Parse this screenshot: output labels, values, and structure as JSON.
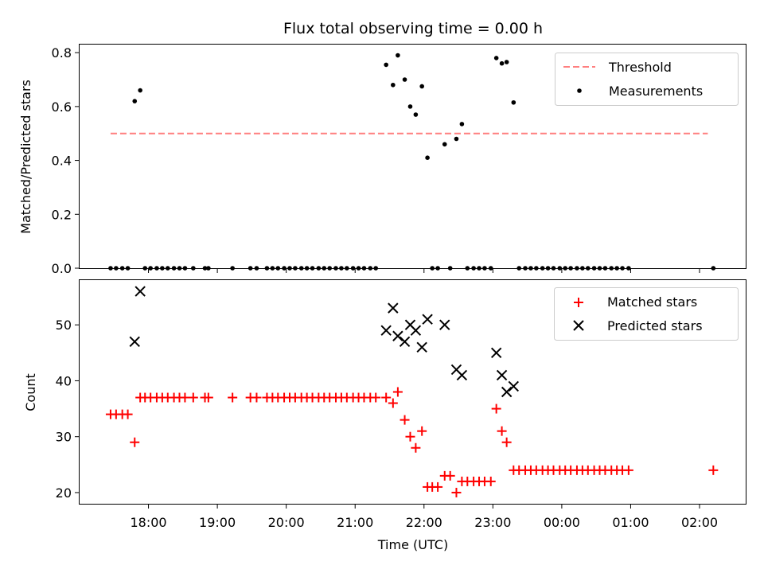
{
  "chart_data": [
    {
      "type": "scatter",
      "title": "Flux total observing time = 0.00 h",
      "ylabel": "Matched/Predicted stars",
      "ylim": [
        0,
        0.83
      ],
      "yticks": [
        "0.0",
        "0.2",
        "0.4",
        "0.6",
        "0.8"
      ],
      "ytick_values": [
        0,
        0.2,
        0.4,
        0.6,
        0.8
      ],
      "xlim": [
        17.0,
        26.67
      ],
      "legend_position": "upper right",
      "threshold": {
        "name": "Threshold",
        "value": 0.5,
        "x_range": [
          17.45,
          26.12
        ],
        "color": "#ff7f7f",
        "style": "dashed"
      },
      "series": [
        {
          "name": "Measurements",
          "color": "#000000",
          "marker": "dot",
          "x": [
            17.45,
            17.53,
            17.62,
            17.7,
            17.8,
            17.88,
            17.95,
            18.03,
            18.12,
            18.2,
            18.28,
            18.37,
            18.45,
            18.53,
            18.65,
            18.82,
            18.87,
            19.22,
            19.48,
            19.57,
            19.72,
            19.8,
            19.88,
            19.97,
            20.05,
            20.13,
            20.22,
            20.3,
            20.38,
            20.47,
            20.55,
            20.63,
            20.72,
            20.8,
            20.88,
            20.97,
            21.05,
            21.13,
            21.22,
            21.3,
            21.45,
            21.55,
            21.62,
            21.72,
            21.8,
            21.88,
            21.97,
            22.05,
            22.12,
            22.2,
            22.3,
            22.38,
            22.47,
            22.55,
            22.63,
            22.72,
            22.8,
            22.88,
            22.97,
            23.05,
            23.13,
            23.2,
            23.3,
            23.38,
            23.47,
            23.55,
            23.63,
            23.72,
            23.8,
            23.88,
            23.97,
            24.05,
            24.13,
            24.22,
            24.3,
            24.38,
            24.47,
            24.55,
            24.63,
            24.72,
            24.8,
            24.88,
            24.97,
            26.2
          ],
          "y": [
            0,
            0,
            0,
            0,
            0.62,
            0.66,
            0,
            0,
            0,
            0,
            0,
            0,
            0,
            0,
            0,
            0,
            0,
            0,
            0,
            0,
            0,
            0,
            0,
            0,
            0,
            0,
            0,
            0,
            0,
            0,
            0,
            0,
            0,
            0,
            0,
            0,
            0,
            0,
            0,
            0,
            0.755,
            0.68,
            0.79,
            0.7,
            0.6,
            0.57,
            0.675,
            0.41,
            0,
            0,
            0.46,
            0,
            0.48,
            0.535,
            0,
            0,
            0,
            0,
            0,
            0.78,
            0.76,
            0.765,
            0.615,
            0,
            0,
            0,
            0,
            0,
            0,
            0,
            0,
            0,
            0,
            0,
            0,
            0,
            0,
            0,
            0,
            0,
            0,
            0,
            0,
            0
          ]
        }
      ]
    },
    {
      "type": "scatter",
      "title": "",
      "xlabel": "Time (UTC)",
      "ylabel": "Count",
      "ylim": [
        18,
        58
      ],
      "yticks": [
        "20",
        "30",
        "40",
        "50"
      ],
      "ytick_values": [
        20,
        30,
        40,
        50
      ],
      "xlim": [
        17.0,
        26.67
      ],
      "xtick_values": [
        18,
        19,
        20,
        21,
        22,
        23,
        24,
        25,
        26
      ],
      "xticks": [
        "18:00",
        "19:00",
        "20:00",
        "21:00",
        "22:00",
        "23:00",
        "00:00",
        "01:00",
        "02:00"
      ],
      "legend_position": "upper right",
      "series": [
        {
          "name": "Matched stars",
          "color": "#ff0000",
          "marker": "plus",
          "x": [
            17.45,
            17.53,
            17.62,
            17.7,
            17.8,
            17.88,
            17.95,
            18.03,
            18.12,
            18.2,
            18.28,
            18.37,
            18.45,
            18.53,
            18.65,
            18.82,
            18.87,
            19.22,
            19.48,
            19.57,
            19.72,
            19.8,
            19.88,
            19.97,
            20.05,
            20.13,
            20.22,
            20.3,
            20.38,
            20.47,
            20.55,
            20.63,
            20.72,
            20.8,
            20.88,
            20.97,
            21.05,
            21.13,
            21.22,
            21.3,
            21.45,
            21.55,
            21.62,
            21.72,
            21.8,
            21.88,
            21.97,
            22.05,
            22.12,
            22.2,
            22.3,
            22.38,
            22.47,
            22.55,
            22.63,
            22.72,
            22.8,
            22.88,
            22.97,
            23.05,
            23.13,
            23.2,
            23.3,
            23.38,
            23.47,
            23.55,
            23.63,
            23.72,
            23.8,
            23.88,
            23.97,
            24.05,
            24.13,
            24.22,
            24.3,
            24.38,
            24.47,
            24.55,
            24.63,
            24.72,
            24.8,
            24.88,
            24.97,
            26.2
          ],
          "y": [
            34,
            34,
            34,
            34,
            29,
            37,
            37,
            37,
            37,
            37,
            37,
            37,
            37,
            37,
            37,
            37,
            37,
            37,
            37,
            37,
            37,
            37,
            37,
            37,
            37,
            37,
            37,
            37,
            37,
            37,
            37,
            37,
            37,
            37,
            37,
            37,
            37,
            37,
            37,
            37,
            37,
            36,
            38,
            33,
            30,
            28,
            31,
            21,
            21,
            21,
            23,
            23,
            20,
            22,
            22,
            22,
            22,
            22,
            22,
            35,
            31,
            29,
            24,
            24,
            24,
            24,
            24,
            24,
            24,
            24,
            24,
            24,
            24,
            24,
            24,
            24,
            24,
            24,
            24,
            24,
            24,
            24,
            24,
            24
          ]
        },
        {
          "name": "Predicted stars",
          "color": "#000000",
          "marker": "x",
          "x": [
            17.8,
            17.88,
            21.45,
            21.55,
            21.62,
            21.72,
            21.8,
            21.88,
            21.97,
            22.05,
            22.3,
            22.47,
            22.55,
            23.05,
            23.13,
            23.2,
            23.3
          ],
          "y": [
            47,
            56,
            49,
            53,
            48,
            47,
            50,
            49,
            46,
            51,
            50,
            42,
            41,
            45,
            41,
            38,
            39
          ]
        }
      ]
    }
  ]
}
